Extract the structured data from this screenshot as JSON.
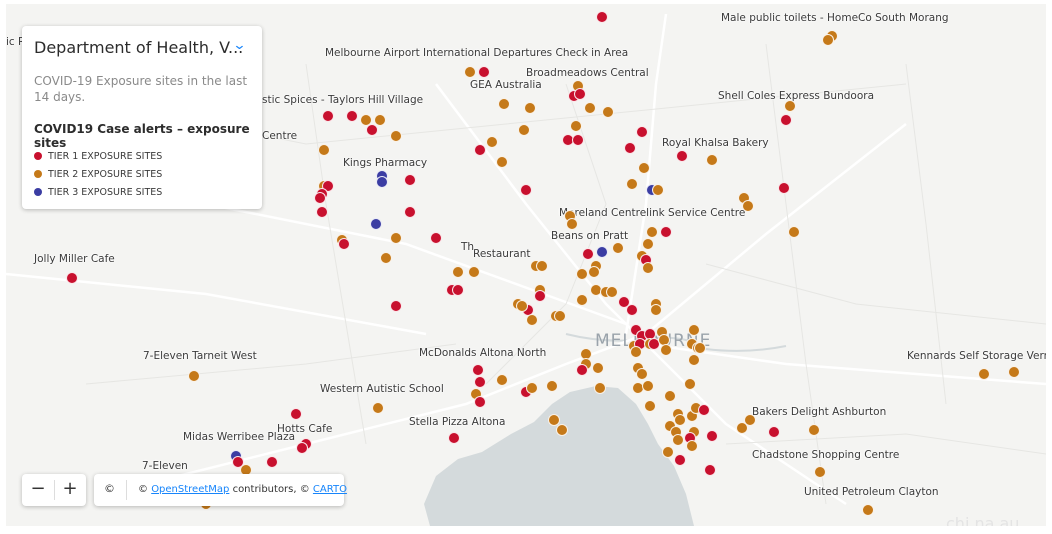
{
  "panel": {
    "title": "Department of Health, V...",
    "description": "COVID-19 Exposure sites in the last 14 days.",
    "legend_title": "COVID19 Case alerts – exposure sites",
    "legend": [
      {
        "label": "TIER 1 EXPOSURE SITES",
        "color": "#c8102e"
      },
      {
        "label": "TIER 2 EXPOSURE SITES",
        "color": "#c57919"
      },
      {
        "label": "TIER 3 EXPOSURE SITES",
        "color": "#3b3da3"
      }
    ]
  },
  "map": {
    "city_label": "MELBOURNE",
    "places": [
      "ic R",
      "Male public toilets - HomeCo South Morang",
      "Melbourne Airport International Departures Check in Area",
      "Broadmeadows Central",
      "GEA Australia",
      "stic Spices - Taylors Hill Village",
      "Shell Coles Express Bundoora",
      "Centre",
      "Royal Khalsa Bakery",
      "Kings Pharmacy",
      "Moreland Centrelink Service Centre",
      "Beans on Pratt",
      "Restaurant",
      "Th",
      "Jolly Miller Cafe",
      "7-Eleven Tarneit West",
      "McDonalds Altona North",
      "Kennards Self Storage Verm",
      "Western Autistic School",
      "Bakers Delight Ashburton",
      "Stella Pizza Altona",
      "Hotts Cafe",
      "Midas Werribee Plaza",
      "Chadstone Shopping Centre",
      "7-Eleven",
      "United Petroleum Clayton"
    ],
    "zoom_in": "+",
    "zoom_out": "−"
  },
  "attribution": {
    "symbol": "©",
    "prefix": "© ",
    "osm_link": "OpenStreetMap",
    "middle": " contributors, © ",
    "carto_link": "CARTO"
  },
  "watermark": "chi na.au",
  "colors": {
    "tier1": "#c8102e",
    "tier2": "#c57919",
    "tier3": "#3b3da3",
    "accent": "#1785fb"
  }
}
